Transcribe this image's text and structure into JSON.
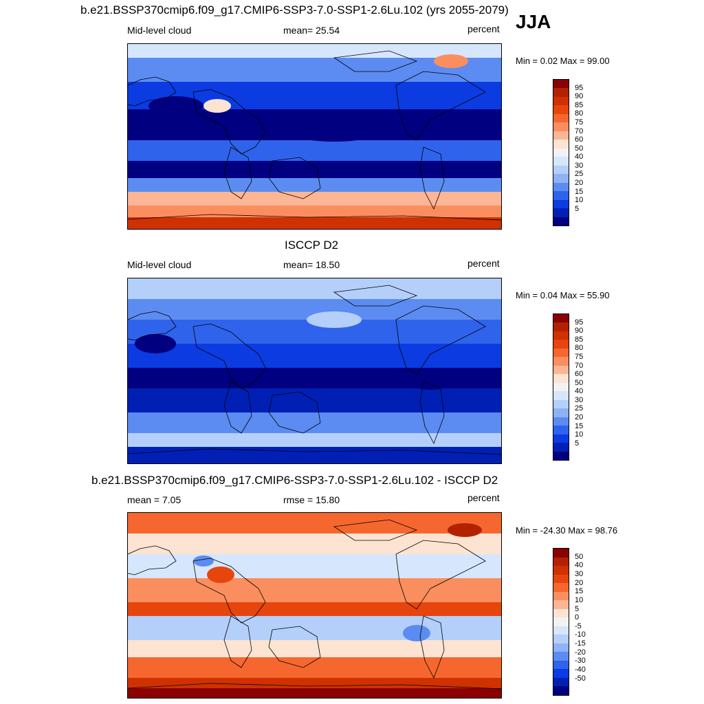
{
  "season": "JJA",
  "panels": [
    {
      "title": "b.e21.BSSP370cmip6.f09_g17.CMIP6-SSP3-7.0-SSP1-2.6Lu.102 (yrs 2055-2079)",
      "left_label": "Mid-level cloud",
      "stat_label": "mean=  25.54",
      "units": "percent",
      "minmax": "Min =   0.02 Max =  99.00",
      "palette": "abs",
      "pattern": "model"
    },
    {
      "title": "ISCCP D2",
      "left_label": "Mid-level cloud",
      "stat_label": "mean=  18.50",
      "units": "percent",
      "minmax": "Min =   0.04 Max =  55.90",
      "palette": "abs",
      "pattern": "obs"
    },
    {
      "title": "b.e21.BSSP370cmip6.f09_g17.CMIP6-SSP3-7.0-SSP1-2.6Lu.102 - ISCCP D2",
      "left_label": "mean =   7.05",
      "stat_label": "rmse =  15.80",
      "units": "percent",
      "minmax": "Min = -24.30 Max =  98.76",
      "palette": "diff",
      "pattern": "diff"
    }
  ],
  "colorbars": {
    "abs": {
      "colors": [
        "#8b0000",
        "#b22201",
        "#d03100",
        "#e6450e",
        "#f5672f",
        "#fb8e5e",
        "#fcb595",
        "#fde3d2",
        "#f2f2f2",
        "#d6e6fc",
        "#b3cffa",
        "#8eb2f5",
        "#5c8cf1",
        "#2f63ec",
        "#0b3be1",
        "#0020b5",
        "#000080"
      ],
      "ticks": [
        "95",
        "90",
        "85",
        "80",
        "75",
        "70",
        "60",
        "50",
        "40",
        "30",
        "25",
        "20",
        "15",
        "10",
        "5"
      ]
    },
    "diff": {
      "colors": [
        "#8b0000",
        "#b22201",
        "#d03100",
        "#e6450e",
        "#f5672f",
        "#fb8e5e",
        "#fcb595",
        "#fde3d2",
        "#f2f2f2",
        "#d6e6fc",
        "#b3cffa",
        "#8eb2f5",
        "#5c8cf1",
        "#2f63ec",
        "#0b3be1",
        "#0020b5",
        "#000080"
      ],
      "ticks": [
        "50",
        "40",
        "30",
        "20",
        "15",
        "10",
        "5",
        "0",
        "-5",
        "-10",
        "-15",
        "-20",
        "-30",
        "-40",
        "-50"
      ]
    }
  }
}
